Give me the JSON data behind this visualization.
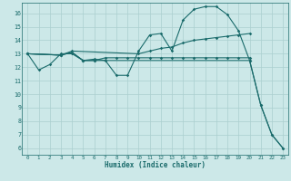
{
  "xlabel": "Humidex (Indice chaleur)",
  "bg_color": "#cce8e8",
  "grid_color": "#aacfcf",
  "line_color": "#1a6b6b",
  "xlim": [
    -0.5,
    23.5
  ],
  "ylim": [
    5.5,
    16.8
  ],
  "xticks": [
    0,
    1,
    2,
    3,
    4,
    5,
    6,
    7,
    8,
    9,
    10,
    11,
    12,
    13,
    14,
    15,
    16,
    17,
    18,
    19,
    20,
    21,
    22,
    23
  ],
  "yticks": [
    6,
    7,
    8,
    9,
    10,
    11,
    12,
    13,
    14,
    15,
    16
  ],
  "lines": [
    {
      "x": [
        0,
        1,
        2,
        3,
        4,
        5,
        6,
        7,
        8,
        9,
        10,
        11,
        12,
        13,
        14,
        15,
        16,
        17,
        18,
        19,
        20,
        21,
        22,
        23
      ],
      "y": [
        13,
        11.8,
        12.2,
        13.0,
        13.0,
        12.5,
        12.6,
        12.5,
        11.4,
        11.4,
        13.2,
        14.4,
        14.5,
        13.2,
        15.5,
        16.3,
        16.5,
        16.5,
        15.9,
        14.7,
        12.5,
        9.2,
        7.0,
        6.0
      ]
    },
    {
      "x": [
        0,
        3,
        4,
        10,
        11,
        12,
        13,
        14,
        15,
        16,
        17,
        18,
        19,
        20
      ],
      "y": [
        13,
        12.9,
        13.2,
        13.0,
        13.2,
        13.4,
        13.5,
        13.8,
        14.0,
        14.1,
        14.2,
        14.3,
        14.4,
        14.5
      ]
    },
    {
      "x": [
        0,
        3,
        4,
        5,
        6,
        7,
        8,
        9,
        10,
        11,
        12,
        13,
        14,
        15,
        16,
        17,
        18,
        19,
        20
      ],
      "y": [
        13,
        12.9,
        13.1,
        12.5,
        12.5,
        12.7,
        12.7,
        12.7,
        12.7,
        12.7,
        12.7,
        12.7,
        12.7,
        12.7,
        12.7,
        12.7,
        12.7,
        12.7,
        12.7
      ]
    },
    {
      "x": [
        0,
        3,
        4,
        5,
        6,
        20,
        21,
        22,
        23
      ],
      "y": [
        13,
        12.9,
        13.1,
        12.5,
        12.5,
        12.5,
        9.2,
        7.0,
        6.0
      ]
    }
  ]
}
